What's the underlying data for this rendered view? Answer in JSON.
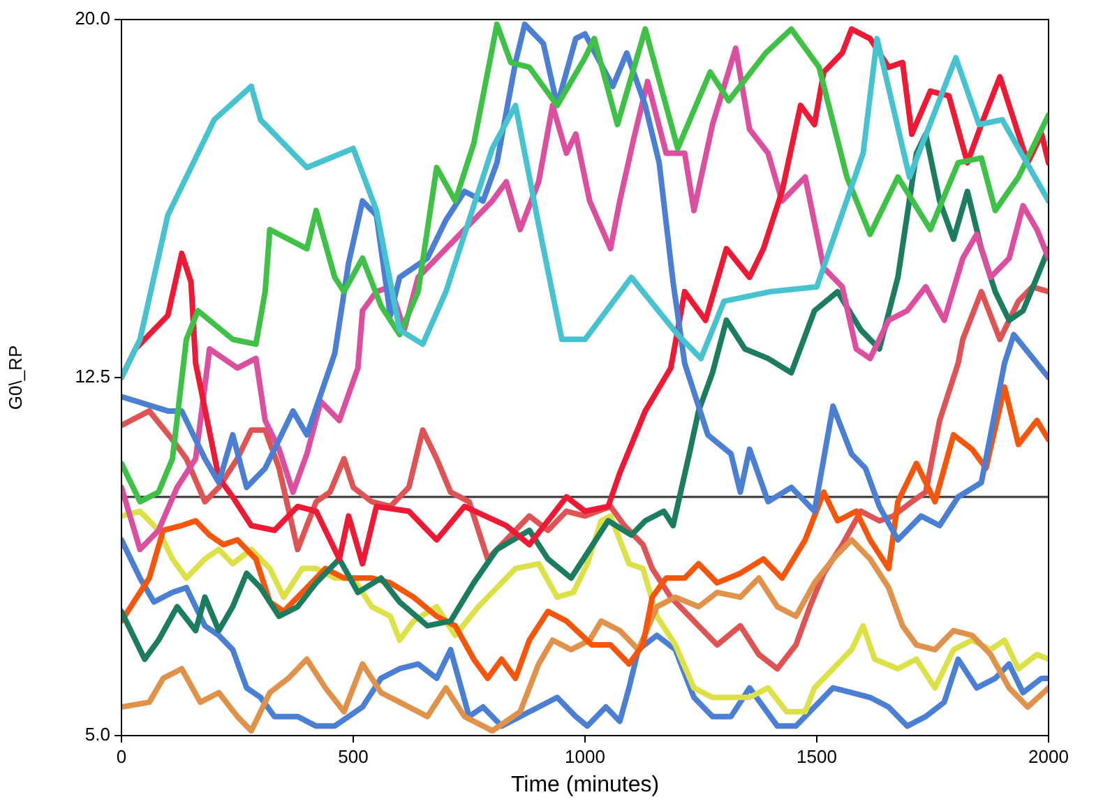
{
  "chart_data": {
    "type": "line",
    "xlabel": "Time (minutes)",
    "ylabel": "G0\\_RP",
    "xlim": [
      0,
      2000
    ],
    "xticks": [
      0,
      500,
      1000,
      1500,
      2000
    ],
    "ylim": [
      5,
      20
    ],
    "yticks": [
      {
        "value": 5,
        "label": "5.0"
      },
      12.5,
      {
        "value": 20,
        "label": "20.0"
      }
    ],
    "legend": false,
    "marker": "none",
    "line_style": "solid",
    "ref_lines": [
      {
        "axis": "y",
        "value": 10,
        "color": "#333333"
      }
    ],
    "series": [
      {
        "color": "#47c2cf",
        "x": [
          0,
          40,
          100,
          200,
          280,
          300,
          400,
          500,
          550,
          600,
          650,
          700,
          800,
          850,
          900,
          950,
          1000,
          1100,
          1200,
          1250,
          1300,
          1400,
          1500,
          1600,
          1630,
          1700,
          1800,
          1850,
          1900,
          2000
        ],
        "values": [
          12.5,
          13.3,
          15.9,
          17.9,
          18.6,
          17.9,
          16.9,
          17.3,
          16.0,
          13.5,
          13.2,
          14.3,
          17.3,
          18.2,
          15.7,
          13.3,
          13.3,
          14.6,
          13.4,
          12.9,
          14.1,
          14.3,
          14.4,
          17.2,
          19.6,
          16.7,
          19.2,
          17.8,
          17.9,
          16.2
        ]
      },
      {
        "color": "#3fc046",
        "x": [
          0,
          40,
          80,
          110,
          140,
          165,
          240,
          290,
          310,
          320,
          400,
          420,
          460,
          480,
          520,
          560,
          600,
          640,
          680,
          720,
          760,
          780,
          810,
          840,
          880,
          940,
          1000,
          1020,
          1070,
          1130,
          1200,
          1270,
          1310,
          1390,
          1445,
          1505,
          1565,
          1615,
          1675,
          1745,
          1805,
          1855,
          1885,
          1935,
          2000
        ],
        "values": [
          10.7,
          9.9,
          10.1,
          10.8,
          13.3,
          13.9,
          13.3,
          13.2,
          14.3,
          15.6,
          15.2,
          16.0,
          14.6,
          14.3,
          15.0,
          14.0,
          13.4,
          14.3,
          16.9,
          16.2,
          17.4,
          18.4,
          19.9,
          19.1,
          19.0,
          18.2,
          19.2,
          19.6,
          17.8,
          19.8,
          17.3,
          18.9,
          18.3,
          19.3,
          19.8,
          19.0,
          16.7,
          15.5,
          16.7,
          15.6,
          17.0,
          17.1,
          16.0,
          16.7,
          18.0
        ]
      },
      {
        "color": "#4a7fd4",
        "x": [
          0,
          100,
          130,
          180,
          210,
          240,
          270,
          310,
          370,
          400,
          460,
          490,
          520,
          550,
          580,
          600,
          660,
          700,
          740,
          780,
          810,
          850,
          870,
          910,
          940,
          980,
          1000,
          1060,
          1090,
          1130,
          1160,
          1190,
          1215,
          1265,
          1315,
          1335,
          1355,
          1395,
          1445,
          1495,
          1535,
          1575,
          1605,
          1635,
          1675,
          1725,
          1765,
          1805,
          1855,
          1885,
          1905,
          1925,
          2000
        ],
        "values": [
          12.1,
          11.8,
          11.8,
          10.8,
          10.3,
          11.3,
          10.2,
          10.6,
          11.8,
          11.3,
          13.0,
          14.9,
          16.2,
          15.9,
          13.8,
          14.6,
          15.0,
          15.8,
          16.4,
          16.2,
          17.0,
          19.1,
          19.9,
          19.5,
          18.2,
          19.6,
          19.7,
          18.6,
          19.3,
          18.2,
          17.0,
          14.5,
          12.8,
          11.3,
          10.9,
          10.1,
          11.0,
          9.9,
          10.2,
          9.7,
          11.9,
          10.9,
          10.6,
          9.8,
          9.1,
          9.6,
          9.4,
          10.0,
          10.3,
          11.8,
          12.8,
          13.4,
          12.5
        ]
      },
      {
        "color": "#ee1a35",
        "x": [
          0,
          30,
          100,
          130,
          150,
          160,
          210,
          240,
          280,
          330,
          380,
          420,
          470,
          490,
          520,
          550,
          620,
          680,
          740,
          830,
          880,
          920,
          960,
          1000,
          1050,
          1075,
          1130,
          1185,
          1215,
          1260,
          1305,
          1355,
          1385,
          1425,
          1465,
          1495,
          1515,
          1555,
          1575,
          1615,
          1655,
          1685,
          1705,
          1745,
          1785,
          1825,
          1855,
          1895,
          1925,
          1955,
          1985,
          2000
        ],
        "values": [
          12.5,
          13.1,
          13.8,
          15.1,
          14.5,
          12.8,
          10.4,
          10.0,
          9.4,
          9.3,
          9.8,
          9.7,
          8.7,
          9.6,
          8.6,
          9.8,
          9.7,
          9.1,
          9.8,
          9.4,
          9.0,
          9.5,
          10.0,
          9.7,
          9.8,
          10.5,
          11.8,
          12.7,
          14.3,
          13.7,
          15.2,
          14.6,
          15.2,
          16.4,
          18.2,
          17.8,
          18.9,
          19.3,
          19.8,
          19.6,
          19.0,
          19.1,
          17.6,
          18.5,
          18.4,
          17.0,
          17.8,
          18.8,
          17.9,
          17.0,
          17.6,
          17.0
        ]
      },
      {
        "color": "#db4f9e",
        "x": [
          0,
          40,
          80,
          120,
          160,
          190,
          250,
          290,
          310,
          340,
          370,
          400,
          430,
          470,
          510,
          520,
          550,
          580,
          610,
          640,
          680,
          720,
          760,
          800,
          830,
          860,
          900,
          930,
          960,
          980,
          1010,
          1055,
          1075,
          1105,
          1135,
          1175,
          1215,
          1235,
          1275,
          1325,
          1355,
          1395,
          1425,
          1475,
          1515,
          1555,
          1585,
          1615,
          1655,
          1695,
          1735,
          1775,
          1815,
          1845,
          1875,
          1915,
          1945,
          1975,
          2000
        ],
        "values": [
          10.2,
          8.9,
          9.3,
          10.2,
          10.8,
          13.1,
          12.7,
          12.9,
          11.6,
          11.0,
          10.1,
          10.9,
          12.0,
          11.6,
          12.7,
          13.9,
          14.3,
          14.4,
          13.5,
          14.6,
          15.0,
          15.4,
          15.8,
          16.2,
          16.6,
          15.6,
          16.6,
          18.2,
          17.2,
          17.6,
          16.2,
          15.2,
          16.2,
          17.5,
          18.7,
          17.2,
          17.2,
          16.0,
          17.8,
          19.4,
          17.7,
          17.2,
          16.2,
          16.7,
          14.8,
          14.4,
          13.1,
          12.9,
          13.7,
          13.9,
          14.4,
          13.7,
          15.0,
          15.5,
          14.6,
          15.0,
          16.1,
          15.6,
          15.0
        ]
      },
      {
        "color": "#1c7c60",
        "x": [
          0,
          50,
          80,
          120,
          160,
          180,
          210,
          240,
          270,
          300,
          340,
          380,
          420,
          470,
          510,
          560,
          600,
          660,
          710,
          760,
          810,
          880,
          920,
          970,
          1010,
          1050,
          1100,
          1130,
          1170,
          1190,
          1225,
          1245,
          1275,
          1305,
          1345,
          1395,
          1445,
          1495,
          1545,
          1595,
          1635,
          1675,
          1715,
          1735,
          1765,
          1795,
          1825,
          1855,
          1885,
          1915,
          1945,
          1975,
          2000
        ],
        "values": [
          7.6,
          6.6,
          7.0,
          7.7,
          7.2,
          7.9,
          7.2,
          7.7,
          8.4,
          8.1,
          7.5,
          7.7,
          8.2,
          8.7,
          8.0,
          8.3,
          7.8,
          7.3,
          7.4,
          8.2,
          8.9,
          9.3,
          8.7,
          8.3,
          8.9,
          9.5,
          9.2,
          9.5,
          9.7,
          9.4,
          10.9,
          11.8,
          12.6,
          13.7,
          13.1,
          12.9,
          12.6,
          13.9,
          14.3,
          13.5,
          13.1,
          14.6,
          17.2,
          17.6,
          16.2,
          15.4,
          16.4,
          15.2,
          14.3,
          13.7,
          13.9,
          14.6,
          15.2
        ]
      },
      {
        "color": "#f5560c",
        "x": [
          0,
          60,
          90,
          130,
          160,
          190,
          220,
          250,
          290,
          320,
          350,
          400,
          440,
          480,
          540,
          580,
          630,
          680,
          720,
          760,
          790,
          820,
          850,
          880,
          920,
          960,
          1015,
          1055,
          1095,
          1125,
          1145,
          1175,
          1215,
          1245,
          1285,
          1335,
          1385,
          1425,
          1475,
          1515,
          1545,
          1585,
          1615,
          1655,
          1675,
          1715,
          1755,
          1795,
          1835,
          1865,
          1905,
          1935,
          1975,
          2000
        ],
        "values": [
          7.4,
          8.3,
          9.3,
          9.4,
          9.5,
          9.2,
          9.0,
          9.1,
          8.7,
          7.8,
          7.6,
          8.1,
          8.5,
          8.3,
          8.3,
          8.2,
          7.9,
          7.5,
          7.3,
          6.6,
          6.2,
          6.6,
          6.2,
          7.0,
          7.6,
          7.4,
          6.9,
          6.9,
          6.5,
          6.9,
          7.9,
          8.3,
          8.3,
          8.6,
          8.2,
          8.4,
          8.7,
          8.3,
          9.1,
          10.1,
          9.5,
          9.7,
          9.1,
          8.5,
          9.9,
          10.7,
          9.9,
          11.3,
          11.0,
          10.6,
          12.3,
          11.1,
          11.6,
          11.2
        ]
      },
      {
        "color": "#e0914a",
        "x": [
          0,
          60,
          90,
          130,
          170,
          210,
          250,
          280,
          320,
          360,
          400,
          440,
          480,
          520,
          560,
          600,
          660,
          700,
          740,
          800,
          860,
          900,
          930,
          970,
          1010,
          1035,
          1075,
          1115,
          1155,
          1195,
          1245,
          1285,
          1335,
          1375,
          1415,
          1455,
          1495,
          1535,
          1575,
          1615,
          1655,
          1685,
          1715,
          1755,
          1795,
          1835,
          1875,
          1915,
          1955,
          2000
        ],
        "values": [
          5.6,
          5.7,
          6.2,
          6.4,
          5.7,
          5.9,
          5.4,
          5.1,
          5.9,
          6.2,
          6.6,
          6.0,
          5.5,
          6.5,
          5.9,
          5.7,
          5.4,
          6.0,
          5.4,
          5.1,
          5.5,
          6.5,
          7.0,
          6.8,
          7.0,
          7.4,
          7.2,
          6.8,
          7.7,
          7.9,
          7.7,
          8.0,
          7.9,
          8.3,
          7.7,
          7.5,
          8.2,
          8.7,
          9.1,
          8.7,
          8.1,
          7.3,
          6.9,
          6.8,
          7.2,
          7.1,
          6.7,
          6.0,
          5.6,
          6.0
        ]
      },
      {
        "color": "#dde148",
        "x": [
          0,
          40,
          80,
          110,
          140,
          180,
          210,
          240,
          280,
          320,
          350,
          390,
          420,
          460,
          500,
          540,
          580,
          600,
          630,
          680,
          720,
          770,
          810,
          850,
          900,
          940,
          975,
          1005,
          1035,
          1055,
          1095,
          1125,
          1155,
          1195,
          1235,
          1275,
          1315,
          1355,
          1395,
          1435,
          1475,
          1495,
          1535,
          1575,
          1600,
          1625,
          1675,
          1715,
          1755,
          1795,
          1835,
          1875,
          1905,
          1935,
          1975,
          2000
        ],
        "values": [
          9.6,
          9.7,
          9.3,
          8.7,
          8.3,
          8.7,
          8.9,
          8.6,
          8.9,
          8.5,
          7.9,
          8.5,
          8.5,
          8.3,
          8.3,
          7.7,
          7.5,
          7.0,
          7.4,
          7.7,
          7.1,
          7.7,
          8.1,
          8.5,
          8.6,
          7.9,
          8.0,
          8.6,
          9.5,
          9.6,
          8.6,
          8.5,
          7.5,
          6.9,
          6.0,
          5.8,
          5.8,
          5.8,
          6.0,
          5.5,
          5.5,
          6.0,
          6.4,
          6.8,
          7.3,
          6.6,
          6.4,
          6.6,
          6.0,
          6.8,
          7.0,
          6.8,
          7.0,
          6.4,
          6.7,
          6.6
        ]
      },
      {
        "color": "#de5454",
        "x": [
          0,
          60,
          110,
          140,
          180,
          210,
          250,
          280,
          310,
          340,
          380,
          420,
          450,
          480,
          500,
          540,
          580,
          620,
          650,
          680,
          710,
          750,
          790,
          830,
          880,
          920,
          960,
          1000,
          1055,
          1085,
          1125,
          1145,
          1185,
          1215,
          1245,
          1285,
          1335,
          1375,
          1415,
          1455,
          1485,
          1515,
          1555,
          1595,
          1635,
          1665,
          1705,
          1735,
          1765,
          1805,
          1815,
          1855,
          1895,
          1935,
          1965,
          2000
        ],
        "values": [
          11.5,
          11.8,
          11.2,
          10.8,
          9.9,
          10.2,
          10.8,
          11.4,
          11.4,
          10.6,
          8.9,
          9.9,
          10.1,
          10.8,
          10.2,
          9.9,
          9.8,
          10.2,
          11.4,
          10.8,
          10.1,
          9.9,
          8.7,
          9.1,
          9.6,
          9.3,
          9.7,
          9.6,
          9.8,
          9.4,
          9.0,
          8.5,
          7.9,
          7.6,
          7.3,
          6.9,
          7.3,
          6.7,
          6.4,
          6.9,
          7.7,
          8.4,
          9.0,
          9.7,
          9.5,
          9.6,
          9.9,
          10.1,
          11.6,
          12.8,
          13.3,
          14.3,
          13.3,
          14.1,
          14.4,
          14.3
        ]
      },
      {
        "color": "#4a7fd4",
        "x": [
          0,
          40,
          70,
          110,
          140,
          180,
          210,
          240,
          270,
          300,
          330,
          380,
          420,
          460,
          520,
          560,
          600,
          640,
          680,
          710,
          750,
          780,
          820,
          860,
          900,
          940,
          980,
          1005,
          1045,
          1075,
          1095,
          1115,
          1155,
          1195,
          1235,
          1275,
          1315,
          1355,
          1415,
          1455,
          1495,
          1535,
          1575,
          1615,
          1655,
          1695,
          1735,
          1775,
          1805,
          1845,
          1885,
          1915,
          1945,
          1985,
          2000
        ],
        "values": [
          9.1,
          8.3,
          7.8,
          8.0,
          8.1,
          7.3,
          7.1,
          6.8,
          6.0,
          5.8,
          5.4,
          5.4,
          5.2,
          5.2,
          5.6,
          6.2,
          6.4,
          6.5,
          6.2,
          6.8,
          5.4,
          5.6,
          5.2,
          5.4,
          5.6,
          5.8,
          5.4,
          5.2,
          5.6,
          5.3,
          6.0,
          6.8,
          7.1,
          6.8,
          5.8,
          5.4,
          5.4,
          6.0,
          5.2,
          5.2,
          5.6,
          6.0,
          5.9,
          5.8,
          5.6,
          5.2,
          5.4,
          5.7,
          6.6,
          6.0,
          6.2,
          6.5,
          5.9,
          6.2,
          6.2
        ]
      }
    ]
  }
}
